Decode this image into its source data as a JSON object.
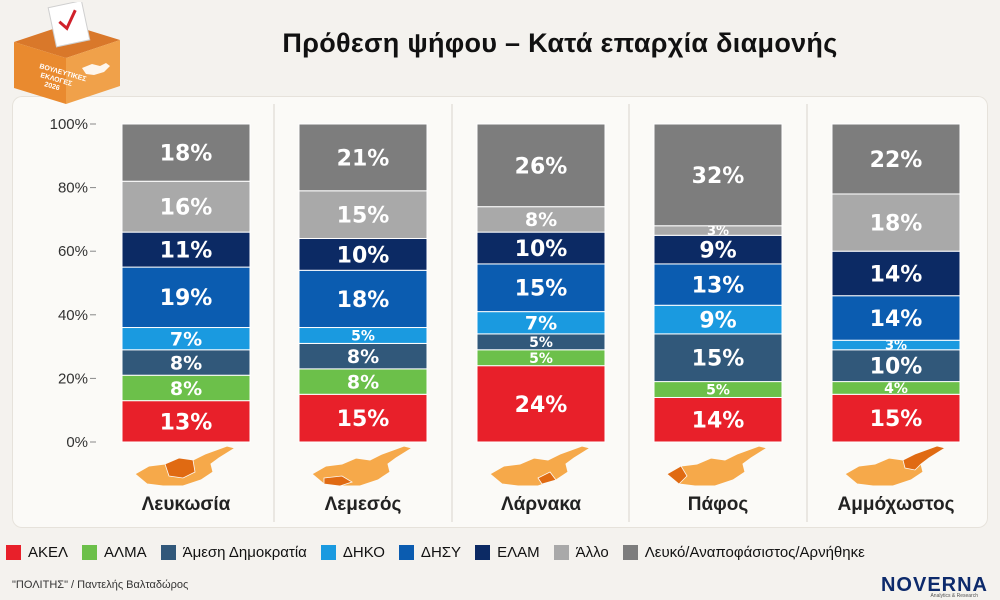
{
  "header": {
    "title": "Πρόθεση ψήφου – Κατά επαρχία διαμονής",
    "ballot_label_line1": "ΒΟΥΛΕΥΤΙΚΕΣ",
    "ballot_label_line2": "ΕΚΛΟΓΕΣ",
    "ballot_label_line3": "2026"
  },
  "chart_data": {
    "type": "bar",
    "stacked": true,
    "title": "Πρόθεση ψήφου – Κατά επαρχία διαμονής",
    "categories": [
      "Λευκωσία",
      "Λεμεσός",
      "Λάρνακα",
      "Πάφος",
      "Αμμόχωστος"
    ],
    "ylim": [
      0,
      100
    ],
    "yticks": [
      "0%",
      "20%",
      "40%",
      "60%",
      "80%",
      "100%"
    ],
    "legend_position": "bottom",
    "series": [
      {
        "name": "ΑΚΕΛ",
        "color": "#e8202a",
        "values": [
          13,
          15,
          24,
          14,
          15
        ]
      },
      {
        "name": "ΑΛΜΑ",
        "color": "#6cc04a",
        "values": [
          8,
          8,
          5,
          5,
          4
        ]
      },
      {
        "name": "Άμεση Δημοκρατία",
        "color": "#31587a",
        "values": [
          8,
          8,
          5,
          15,
          10
        ]
      },
      {
        "name": "ΔΗΚΟ",
        "color": "#1a9ae0",
        "values": [
          7,
          5,
          7,
          9,
          3
        ]
      },
      {
        "name": "ΔΗΣΥ",
        "color": "#0b5cb0",
        "values": [
          19,
          18,
          15,
          13,
          14
        ]
      },
      {
        "name": "ΕΛΑΜ",
        "color": "#0c2a64",
        "values": [
          11,
          10,
          10,
          9,
          14
        ]
      },
      {
        "name": "Άλλο",
        "color": "#a9a9a9",
        "values": [
          16,
          15,
          8,
          3,
          18
        ]
      },
      {
        "name": "Λευκό/Αναποφάσιστος/Αρνήθηκε",
        "color": "#7d7d7d",
        "values": [
          18,
          21,
          26,
          32,
          22
        ]
      }
    ]
  },
  "footer": {
    "source": "\"ΠΟΛΙΤΗΣ\" / Παντελής Βαλταδώρος",
    "logo": "NOVERNA",
    "logo_sub": "Analytics & Research"
  }
}
